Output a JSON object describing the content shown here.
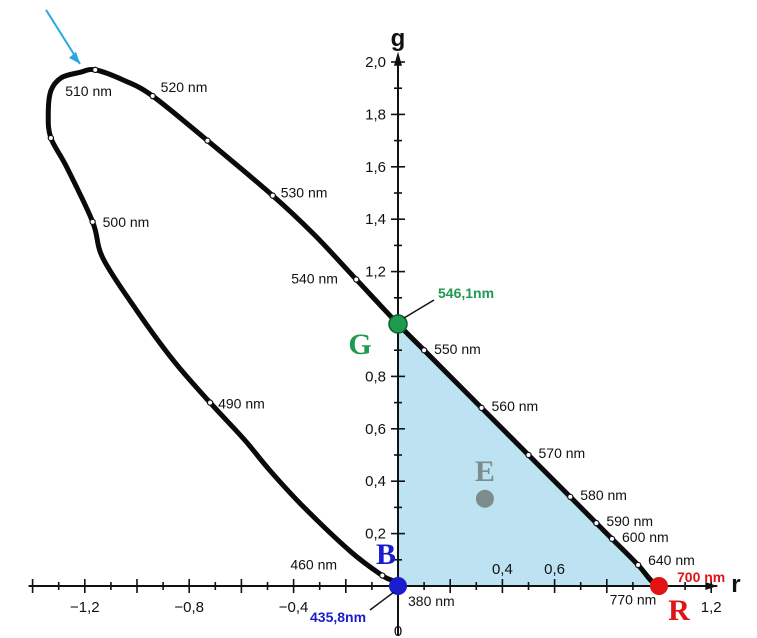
{
  "chart_data": {
    "type": "line",
    "xlabel": "r",
    "ylabel": "g",
    "xlim": [
      -1.4,
      1.3
    ],
    "ylim": [
      -0.15,
      2.1
    ],
    "x_ticks": [
      {
        "value": -1.2,
        "label": "−1,2"
      },
      {
        "value": -0.8,
        "label": "−0,8"
      },
      {
        "value": -0.4,
        "label": "−0,4"
      },
      {
        "value": 0.4,
        "label": "0,4"
      },
      {
        "value": 0.6,
        "label": "0,6"
      },
      {
        "value": 1.2,
        "label": "1,2"
      }
    ],
    "origin_label": "0",
    "y_ticks": [
      {
        "value": 0.2,
        "label": "0,2"
      },
      {
        "value": 0.4,
        "label": "0,4"
      },
      {
        "value": 0.6,
        "label": "0,6"
      },
      {
        "value": 0.8,
        "label": "0,8"
      },
      {
        "value": 1.2,
        "label": "1,2"
      },
      {
        "value": 1.4,
        "label": "1,4"
      },
      {
        "value": 1.6,
        "label": "1,6"
      },
      {
        "value": 1.8,
        "label": "1,8"
      },
      {
        "value": 2.0,
        "label": "2,0"
      }
    ],
    "spectral_locus": [
      {
        "r": 0.0,
        "g": 0.0,
        "label": "380 nm",
        "marker": true
      },
      {
        "r": -0.02,
        "g": 0.02,
        "label": "",
        "marker": false
      },
      {
        "r": -0.06,
        "g": 0.04,
        "label": "460 nm",
        "marker": true
      },
      {
        "r": -0.18,
        "g": 0.13,
        "label": "",
        "marker": false
      },
      {
        "r": -0.36,
        "g": 0.3,
        "label": "",
        "marker": false
      },
      {
        "r": -0.49,
        "g": 0.44,
        "label": "",
        "marker": false
      },
      {
        "r": -0.59,
        "g": 0.56,
        "label": "",
        "marker": false
      },
      {
        "r": -0.72,
        "g": 0.7,
        "label": "490 nm",
        "marker": true
      },
      {
        "r": -0.86,
        "g": 0.86,
        "label": "",
        "marker": false
      },
      {
        "r": -1.0,
        "g": 1.05,
        "label": "",
        "marker": false
      },
      {
        "r": -1.13,
        "g": 1.25,
        "label": "",
        "marker": false
      },
      {
        "r": -1.17,
        "g": 1.39,
        "label": "500 nm",
        "marker": true
      },
      {
        "r": -1.27,
        "g": 1.6,
        "label": "",
        "marker": false
      },
      {
        "r": -1.33,
        "g": 1.71,
        "label": "",
        "marker": true
      },
      {
        "r": -1.34,
        "g": 1.8,
        "label": "",
        "marker": false
      },
      {
        "r": -1.33,
        "g": 1.89,
        "label": "",
        "marker": false
      },
      {
        "r": -1.29,
        "g": 1.94,
        "label": "",
        "marker": false
      },
      {
        "r": -1.22,
        "g": 1.96,
        "label": "",
        "marker": false
      },
      {
        "r": -1.16,
        "g": 1.97,
        "label": "510 nm",
        "marker": true
      },
      {
        "r": -1.05,
        "g": 1.93,
        "label": "",
        "marker": false
      },
      {
        "r": -0.94,
        "g": 1.87,
        "label": "520 nm",
        "marker": true
      },
      {
        "r": -0.73,
        "g": 1.7,
        "label": "",
        "marker": true
      },
      {
        "r": -0.48,
        "g": 1.49,
        "label": "530 nm",
        "marker": true
      },
      {
        "r": -0.32,
        "g": 1.34,
        "label": "",
        "marker": false
      },
      {
        "r": -0.16,
        "g": 1.17,
        "label": "540 nm",
        "marker": true
      },
      {
        "r": 0.0,
        "g": 1.0,
        "label": "546,1 nm",
        "marker": false
      },
      {
        "r": 0.1,
        "g": 0.9,
        "label": "550 nm",
        "marker": true
      },
      {
        "r": 0.32,
        "g": 0.68,
        "label": "560 nm",
        "marker": true
      },
      {
        "r": 0.5,
        "g": 0.5,
        "label": "570 nm",
        "marker": true
      },
      {
        "r": 0.66,
        "g": 0.34,
        "label": "580 nm",
        "marker": true
      },
      {
        "r": 0.76,
        "g": 0.24,
        "label": "590 nm",
        "marker": true
      },
      {
        "r": 0.82,
        "g": 0.18,
        "label": "600 nm",
        "marker": true
      },
      {
        "r": 0.92,
        "g": 0.08,
        "label": "640 nm",
        "marker": true
      },
      {
        "r": 0.97,
        "g": 0.02,
        "label": "",
        "marker": false
      },
      {
        "r": 1.0,
        "g": 0.0,
        "label": "700 nm",
        "marker": false
      },
      {
        "r": 1.01,
        "g": -0.01,
        "label": "770 nm",
        "marker": true
      }
    ],
    "primaries": [
      {
        "id": "G",
        "r": 0.0,
        "g": 1.0,
        "label": "G",
        "wavelength": "546,1nm",
        "color": "#1e9a4f"
      },
      {
        "id": "B",
        "r": 0.0,
        "g": 0.0,
        "label": "B",
        "wavelength": "435,8nm",
        "color": "#1c1ccf"
      },
      {
        "id": "R",
        "r": 1.0,
        "g": 0.0,
        "label": "R",
        "wavelength": "700 nm",
        "color": "#e01414"
      }
    ],
    "white_point": {
      "label": "E",
      "r": 0.333,
      "g": 0.333,
      "color": "#7f8c8d"
    },
    "gamut_fill": "#bde3f3",
    "gamut_stroke": "#2f86b0",
    "arrow_color": "#2aa7e0"
  }
}
